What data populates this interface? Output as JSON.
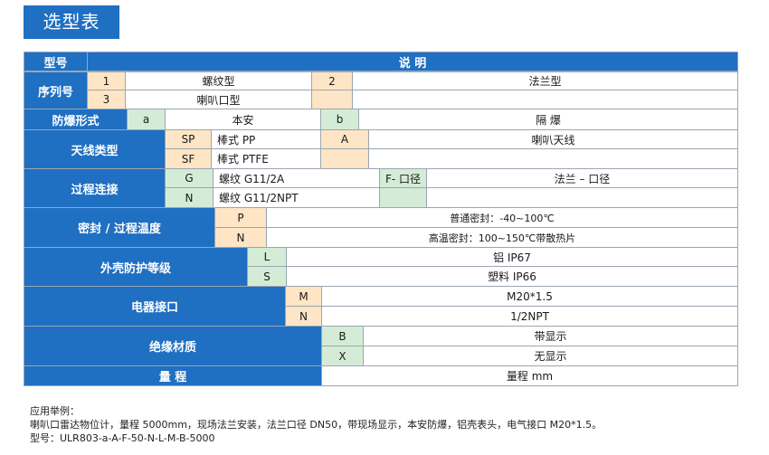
{
  "title": "选型表",
  "header": {
    "model": "型号",
    "description": "说 明"
  },
  "rows": {
    "serial": {
      "label": "序列号",
      "c1": "1",
      "v1": "螺纹型",
      "c2": "2",
      "v2": "法兰型",
      "c3": "3",
      "v3": "喇叭口型"
    },
    "explosion": {
      "label": "防爆形式",
      "c1": "a",
      "v1": "本安",
      "c2": "b",
      "v2": "隔 爆"
    },
    "antenna": {
      "label": "天线类型",
      "c1": "SP",
      "v1": "棒式 PP",
      "c2": "A",
      "v2": "喇叭天线",
      "c3": "SF",
      "v3": "棒式 PTFE"
    },
    "connection": {
      "label": "过程连接",
      "c1": "G",
      "v1": "螺纹 G11/2A",
      "c2": "F- 口径",
      "v2": "法兰 – 口径",
      "c3": "N",
      "v3": "螺纹 G11/2NPT"
    },
    "seal": {
      "label": "密封 / 过程温度",
      "c1": "P",
      "v1": "普通密封：-40~100℃",
      "c2": "N",
      "v2": "高温密封：100~150℃带散热片"
    },
    "housing": {
      "label": "外壳防护等级",
      "c1": "L",
      "v1": "铝 IP67",
      "c2": "S",
      "v2": "塑料 IP66"
    },
    "electric": {
      "label": "电器接口",
      "c1": "M",
      "v1": "M20*1.5",
      "c2": "N",
      "v2": "1/2NPT"
    },
    "insulation": {
      "label": "绝缘材质",
      "c1": "B",
      "v1": "带显示",
      "c2": "X",
      "v2": "无显示"
    },
    "range": {
      "label": "量 程",
      "v1": "量程 mm"
    }
  },
  "notes": {
    "line1": "应用举例：",
    "line2": "喇叭口雷达物位计，量程 5000mm，现场法兰安装，法兰口径 DN50，带现场显示，本安防爆，铝壳表头，电气接口 M20*1.5。",
    "line3": "型号：ULR803-a-A-F-50-N-L-M-B-5000"
  }
}
